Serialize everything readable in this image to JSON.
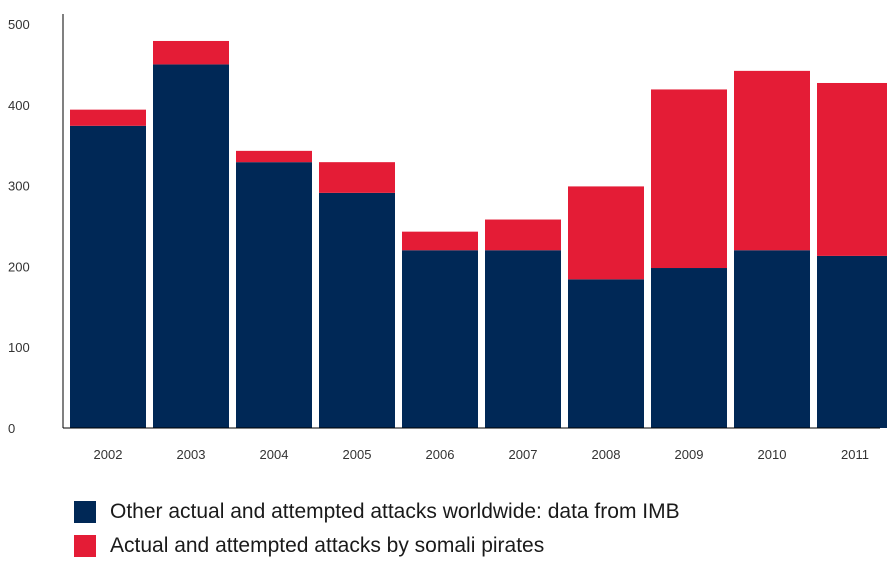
{
  "chart_data": {
    "type": "bar",
    "stacked": true,
    "title": "",
    "xlabel": "",
    "ylabel": "",
    "ylim": [
      0,
      500
    ],
    "yticks": [
      0,
      100,
      200,
      300,
      400,
      500
    ],
    "categories": [
      "2002",
      "2003",
      "2004",
      "2005",
      "2006",
      "2007",
      "2008",
      "2009",
      "2010",
      "2011"
    ],
    "series": [
      {
        "name": "Other actual and attempted attacks worldwide: data from IMB",
        "color": "#002856",
        "values": [
          374,
          450,
          329,
          291,
          220,
          220,
          184,
          198,
          220,
          213
        ]
      },
      {
        "name": "Actual and attempted attacks by somali pirates",
        "color": "#e41c36",
        "values": [
          20,
          29,
          14,
          38,
          23,
          38,
          115,
          221,
          222,
          214
        ]
      }
    ],
    "grid": false,
    "legend_position": "bottom"
  }
}
